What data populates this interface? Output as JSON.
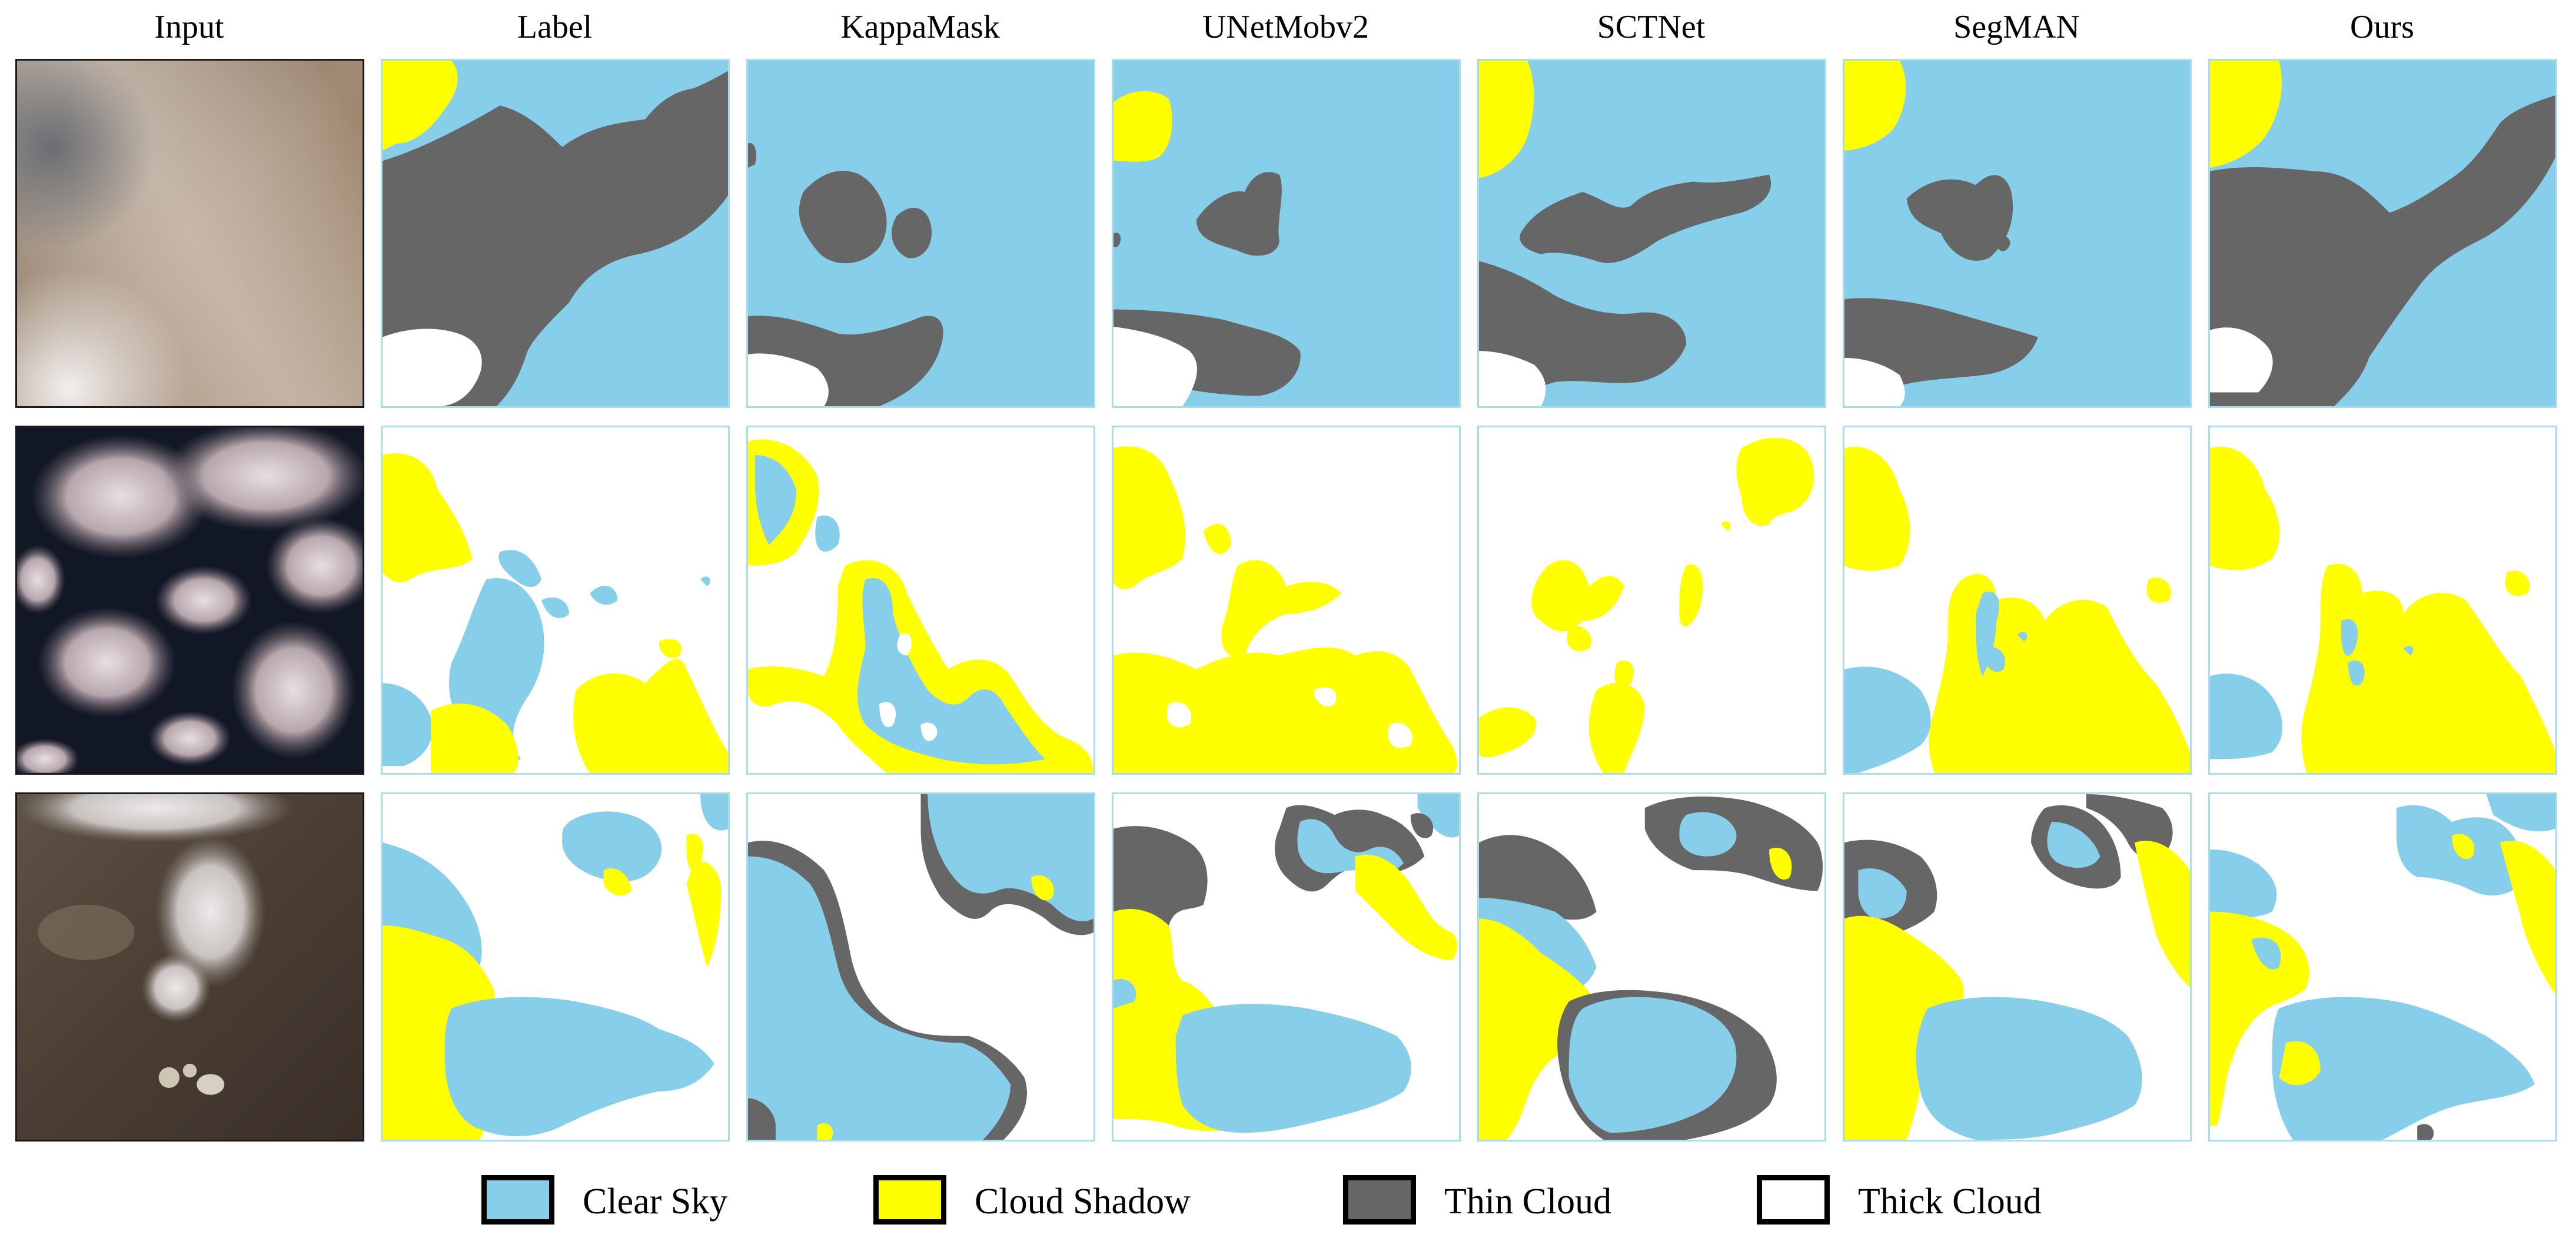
{
  "columns": [
    "Input",
    "Label",
    "KappaMask",
    "UNetMobv2",
    "SCTNet",
    "SegMAN",
    "Ours"
  ],
  "legend": [
    {
      "label": "Clear Sky",
      "color": "#87ceea"
    },
    {
      "label": "Cloud Shadow",
      "color": "#ffff00"
    },
    {
      "label": "Thin Cloud",
      "color": "#666666"
    },
    {
      "label": "Thick Cloud",
      "color": "#ffffff"
    }
  ],
  "colors": {
    "clear_sky": "#87ceea",
    "cloud_shadow": "#ffff00",
    "thin_cloud": "#666666",
    "thick_cloud": "#ffffff"
  }
}
